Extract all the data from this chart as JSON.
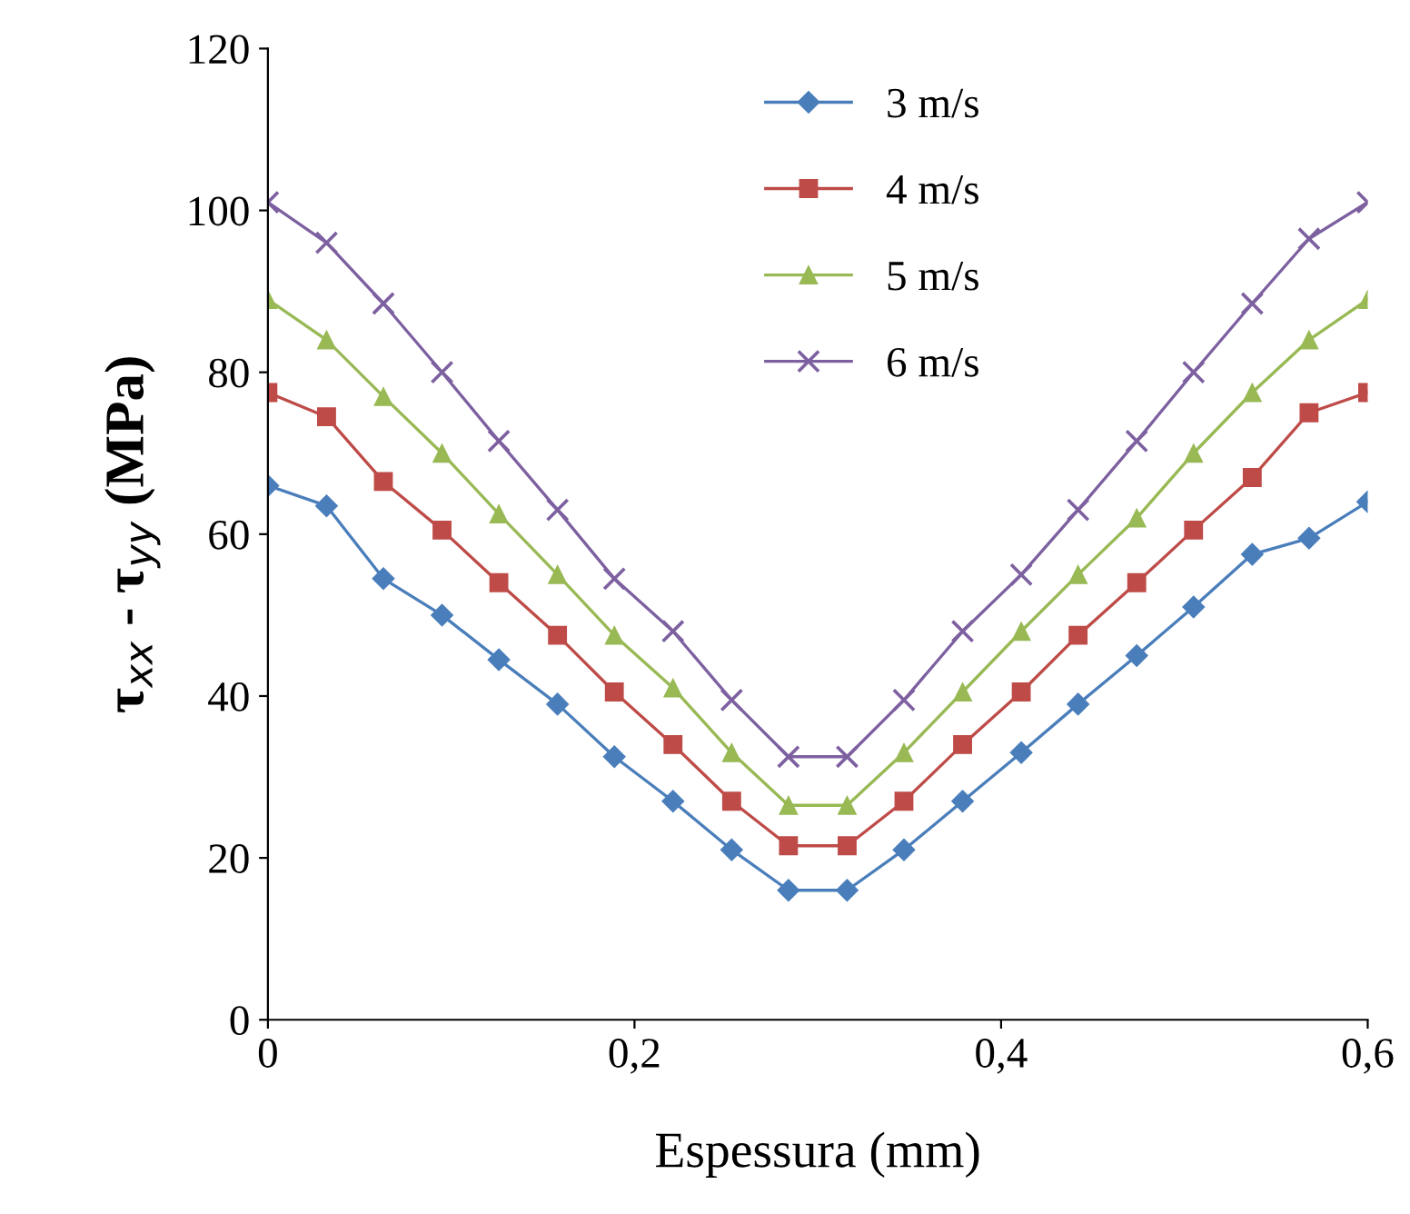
{
  "chart_data": {
    "type": "line",
    "xlabel": "Espessura (mm)",
    "ylabel": "τ$_{xx}$ - τ$_{yy}$ (MPa)",
    "x": [
      0,
      0.032,
      0.063,
      0.095,
      0.126,
      0.158,
      0.189,
      0.221,
      0.253,
      0.284,
      0.316,
      0.347,
      0.379,
      0.411,
      0.442,
      0.474,
      0.505,
      0.537,
      0.568,
      0.6
    ],
    "series": [
      {
        "name": "3 m/s",
        "color": "#4a7ebb",
        "marker": "diamond",
        "values": [
          66,
          63.5,
          54.5,
          50,
          44.5,
          39,
          32.5,
          27,
          21,
          16,
          16,
          21,
          27,
          33,
          39,
          45,
          51,
          57.5,
          59.5,
          64
        ]
      },
      {
        "name": "4 m/s",
        "color": "#be4b48",
        "marker": "square",
        "values": [
          77.5,
          74.5,
          66.5,
          60.5,
          54,
          47.5,
          40.5,
          34,
          27,
          21.5,
          21.5,
          27,
          34,
          40.5,
          47.5,
          54,
          60.5,
          67,
          75,
          77.5
        ]
      },
      {
        "name": "5 m/s",
        "color": "#98b954",
        "marker": "triangle",
        "values": [
          89,
          84,
          77,
          70,
          62.5,
          55,
          47.5,
          41,
          33,
          26.5,
          26.5,
          33,
          40.5,
          48,
          55,
          62,
          70,
          77.5,
          84,
          89
        ]
      },
      {
        "name": "6 m/s",
        "color": "#7d60a0",
        "marker": "cross",
        "values": [
          101,
          96,
          88.5,
          80,
          71.5,
          63,
          54.5,
          48,
          39.5,
          32.5,
          32.5,
          39.5,
          48,
          55,
          63,
          71.5,
          80,
          88.5,
          96.5,
          101
        ]
      }
    ],
    "xlim": [
      0,
      0.6
    ],
    "xticks": [
      0,
      {
        "value": 0.2,
        "label": "0,2"
      },
      {
        "value": 0.4,
        "label": "0,4"
      },
      {
        "value": 0.6,
        "label": "0,6"
      }
    ],
    "ylim": [
      0,
      120
    ],
    "yticks": [
      0,
      20,
      40,
      60,
      80,
      100,
      120
    ],
    "grid": false,
    "legend": "top",
    "line_style": "solid"
  }
}
